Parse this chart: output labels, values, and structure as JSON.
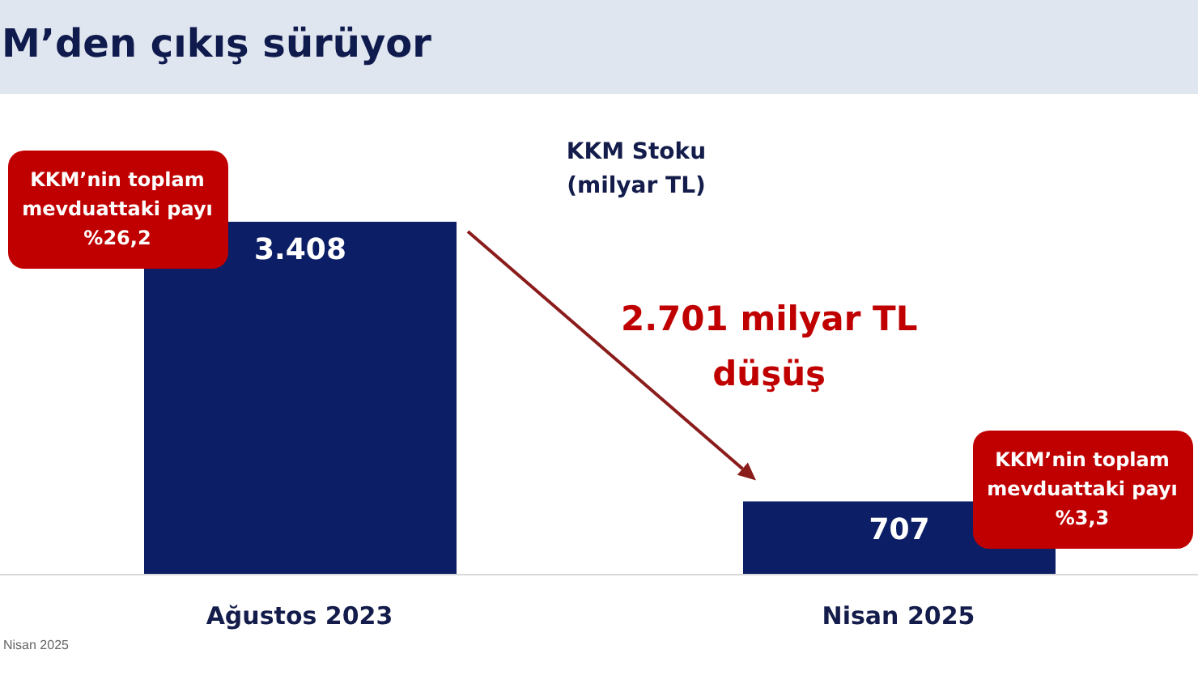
{
  "chart_data": {
    "type": "bar",
    "title": "M’den çıkış sürüyor",
    "subtitle": "KKM Stoku (milyar TL)",
    "categories": [
      "Ağustos 2023",
      "Nisan 2025"
    ],
    "values": [
      3408,
      707
    ],
    "color": "#0c1f66",
    "value_labels": [
      "3.408",
      "707"
    ],
    "tick_labels": "x",
    "annotations": [
      "KKM’nin toplam mevduattaki payı %26,2",
      "2.701 milyar TL düşüş",
      "KKM’nin toplam mevduattaki payı %3,3",
      "Nisan 2025"
    ]
  }
}
